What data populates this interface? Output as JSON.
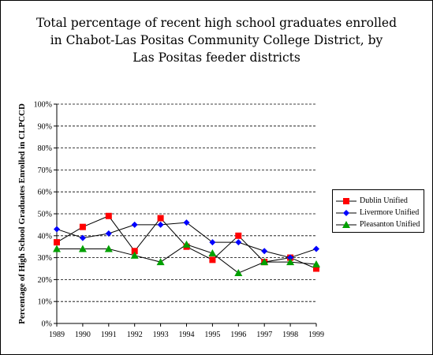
{
  "chart_data": {
    "type": "line",
    "title": [
      "Total percentage of recent high school graduates enrolled",
      "in Chabot-Las Positas Community College District, by",
      "Las Positas feeder districts"
    ],
    "xlabel": "",
    "ylabel": "Percentage of High School Graduates Enrolled in CLPCCD",
    "categories": [
      "1989",
      "1990",
      "1991",
      "1992",
      "1993",
      "1994",
      "1995",
      "1996",
      "1997",
      "1998",
      "1999"
    ],
    "ylim": [
      0,
      100
    ],
    "yticks": [
      "0%",
      "10%",
      "20%",
      "30%",
      "40%",
      "50%",
      "60%",
      "70%",
      "80%",
      "90%",
      "100%"
    ],
    "grid": "horizontal dashed",
    "legend_position": "right",
    "series": [
      {
        "name": "Dublin Unified",
        "marker": "square",
        "color": "#ff0000",
        "values": [
          37,
          44,
          49,
          33,
          48,
          35,
          29,
          40,
          28,
          30,
          25
        ]
      },
      {
        "name": "Livermore Unified",
        "marker": "diamond",
        "color": "#0000ff",
        "values": [
          43,
          39,
          41,
          45,
          45,
          46,
          37,
          37,
          33,
          30,
          34
        ]
      },
      {
        "name": "Pleasanton Unified",
        "marker": "triangle",
        "color": "#00a000",
        "values": [
          34,
          34,
          34,
          31,
          28,
          36,
          32,
          23,
          28,
          28,
          27
        ]
      }
    ]
  }
}
